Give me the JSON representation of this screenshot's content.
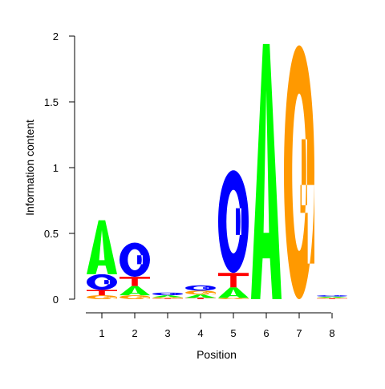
{
  "chart_data": {
    "type": "sequence-logo",
    "xlabel": "Position",
    "ylabel": "Information content",
    "ylim": [
      0,
      2
    ],
    "yticks": [
      0,
      0.5,
      1,
      1.5,
      2
    ],
    "ytick_labels": [
      "0",
      "0.5",
      "1",
      "1.5",
      "2"
    ],
    "positions": [
      1,
      2,
      3,
      4,
      5,
      6,
      7,
      8
    ],
    "xtick_labels": [
      "1",
      "2",
      "3",
      "4",
      "5",
      "6",
      "7",
      "8"
    ],
    "colors": {
      "A": "#00ff00",
      "C": "#0000ff",
      "G": "#ff9900",
      "T": "#ff0000"
    },
    "columns": [
      {
        "position": 1,
        "letters": [
          {
            "base": "G",
            "height": 0.03
          },
          {
            "base": "T",
            "height": 0.04
          },
          {
            "base": "C",
            "height": 0.12
          },
          {
            "base": "A",
            "height": 0.41
          }
        ]
      },
      {
        "position": 2,
        "letters": [
          {
            "base": "G",
            "height": 0.03
          },
          {
            "base": "A",
            "height": 0.07
          },
          {
            "base": "T",
            "height": 0.07
          },
          {
            "base": "C",
            "height": 0.26
          }
        ]
      },
      {
        "position": 3,
        "letters": [
          {
            "base": "T",
            "height": 0.005
          },
          {
            "base": "G",
            "height": 0.01
          },
          {
            "base": "A",
            "height": 0.015
          },
          {
            "base": "C",
            "height": 0.02
          }
        ]
      },
      {
        "position": 4,
        "letters": [
          {
            "base": "T",
            "height": 0.01
          },
          {
            "base": "A",
            "height": 0.025
          },
          {
            "base": "G",
            "height": 0.03
          },
          {
            "base": "C",
            "height": 0.04
          }
        ]
      },
      {
        "position": 5,
        "letters": [
          {
            "base": "G",
            "height": 0.01
          },
          {
            "base": "A",
            "height": 0.08
          },
          {
            "base": "T",
            "height": 0.11
          },
          {
            "base": "C",
            "height": 0.78
          }
        ]
      },
      {
        "position": 6,
        "letters": [
          {
            "base": "A",
            "height": 1.94
          }
        ]
      },
      {
        "position": 7,
        "letters": [
          {
            "base": "G",
            "height": 1.93
          }
        ]
      },
      {
        "position": 8,
        "letters": [
          {
            "base": "T",
            "height": 0.005
          },
          {
            "base": "G",
            "height": 0.007
          },
          {
            "base": "A",
            "height": 0.008
          },
          {
            "base": "C",
            "height": 0.01
          }
        ]
      }
    ]
  }
}
